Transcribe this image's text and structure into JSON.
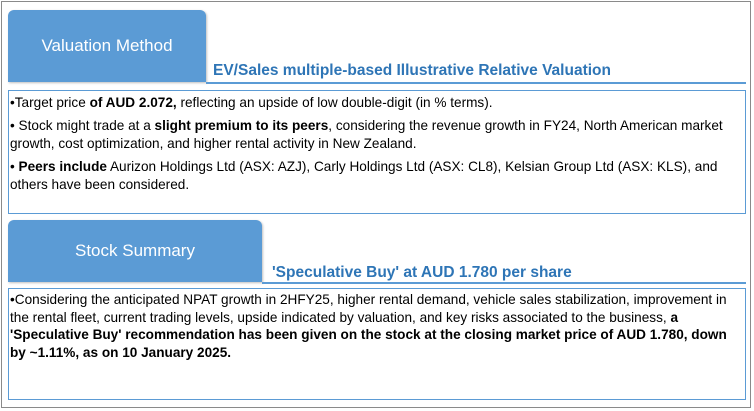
{
  "valuation": {
    "tab_label": "Valuation Method",
    "subtitle": "EV/Sales multiple-based Illustrative Relative Valuation",
    "bullets": [
      {
        "prefix": "•Target price ",
        "bold": "of AUD 2.072,",
        "rest": " reflecting an upside of low double-digit (in % terms)."
      },
      {
        "prefix": "• Stock might trade at a ",
        "bold": "slight premium to its peers",
        "rest": ", considering the revenue growth in FY24, North American market growth, cost optimization, and higher rental activity in New Zealand."
      },
      {
        "prefix": "• ",
        "bold": "Peers include",
        "rest": " Aurizon Holdings Ltd (ASX: AZJ), Carly Holdings Ltd (ASX: CL8), Kelsian Group Ltd (ASX: KLS), and others have been considered."
      }
    ]
  },
  "stock_summary": {
    "tab_label": "Stock Summary",
    "subtitle": "'Speculative Buy' at AUD 1.780 per share",
    "bullet": {
      "prefix": "•Considering the anticipated NPAT growth in 2HFY25, higher rental demand, vehicle sales stabilization, improvement in the rental fleet, current trading levels, upside indicated by valuation, and key risks associated to the business, ",
      "bold": "a 'Speculative Buy' recommendation has been given on the stock at the closing market price of AUD 1.780, down by ~1.11%, as on 10 January 2025."
    }
  },
  "colors": {
    "tab_fill": "#5b9bd5",
    "subtitle_text": "#2e75b6",
    "box_border": "#5b9bd5"
  }
}
